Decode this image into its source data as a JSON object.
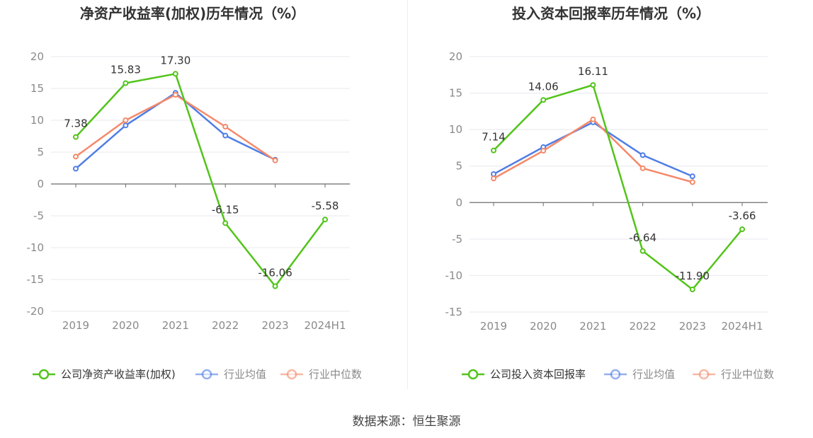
{
  "source": "数据来源：恒生聚源",
  "colors": {
    "company": "#52c41a",
    "average": "#4e7de6",
    "median": "#f5896a",
    "grid": "#e8e8ef",
    "axis": "#6b6b6b",
    "tick_text": "#8a8a8a",
    "title_text": "#333333",
    "label_text": "#333333"
  },
  "chart_data": [
    {
      "type": "line",
      "title": "净资产收益率(加权)历年情况（%）",
      "categories": [
        "2019",
        "2020",
        "2021",
        "2022",
        "2023",
        "2024H1"
      ],
      "ylim": [
        -20,
        20
      ],
      "yticks": [
        20,
        15,
        10,
        5,
        0,
        -5,
        -10,
        -15,
        -20
      ],
      "grid": true,
      "legend_position": "bottom",
      "series": [
        {
          "name": "公司净资产收益率(加权)",
          "color_key": "company",
          "values": [
            7.38,
            15.83,
            17.3,
            -6.15,
            -16.06,
            -5.58
          ],
          "labels": [
            "7.38",
            "15.83",
            "17.30",
            "-6.15",
            "-16.06",
            "-5.58"
          ]
        },
        {
          "name": "行业均值",
          "color_key": "average",
          "values": [
            2.4,
            9.2,
            14.3,
            7.6,
            3.8,
            null
          ]
        },
        {
          "name": "行业中位数",
          "color_key": "median",
          "values": [
            4.3,
            10.0,
            14.0,
            9.0,
            3.7,
            null
          ]
        }
      ]
    },
    {
      "type": "line",
      "title": "投入资本回报率历年情况（%）",
      "categories": [
        "2019",
        "2020",
        "2021",
        "2022",
        "2023",
        "2024H1"
      ],
      "ylim": [
        -15,
        20
      ],
      "yticks": [
        20,
        15,
        10,
        5,
        0,
        -5,
        -10,
        -15
      ],
      "grid": true,
      "legend_position": "bottom",
      "series": [
        {
          "name": "公司投入资本回报率",
          "color_key": "company",
          "values": [
            7.14,
            14.06,
            16.11,
            -6.64,
            -11.9,
            -3.66
          ],
          "labels": [
            "7.14",
            "14.06",
            "16.11",
            "-6.64",
            "-11.90",
            "-3.66"
          ]
        },
        {
          "name": "行业均值",
          "color_key": "average",
          "values": [
            3.9,
            7.6,
            11.0,
            6.5,
            3.6,
            null
          ]
        },
        {
          "name": "行业中位数",
          "color_key": "median",
          "values": [
            3.3,
            7.1,
            11.4,
            4.7,
            2.8,
            null
          ]
        }
      ]
    }
  ]
}
